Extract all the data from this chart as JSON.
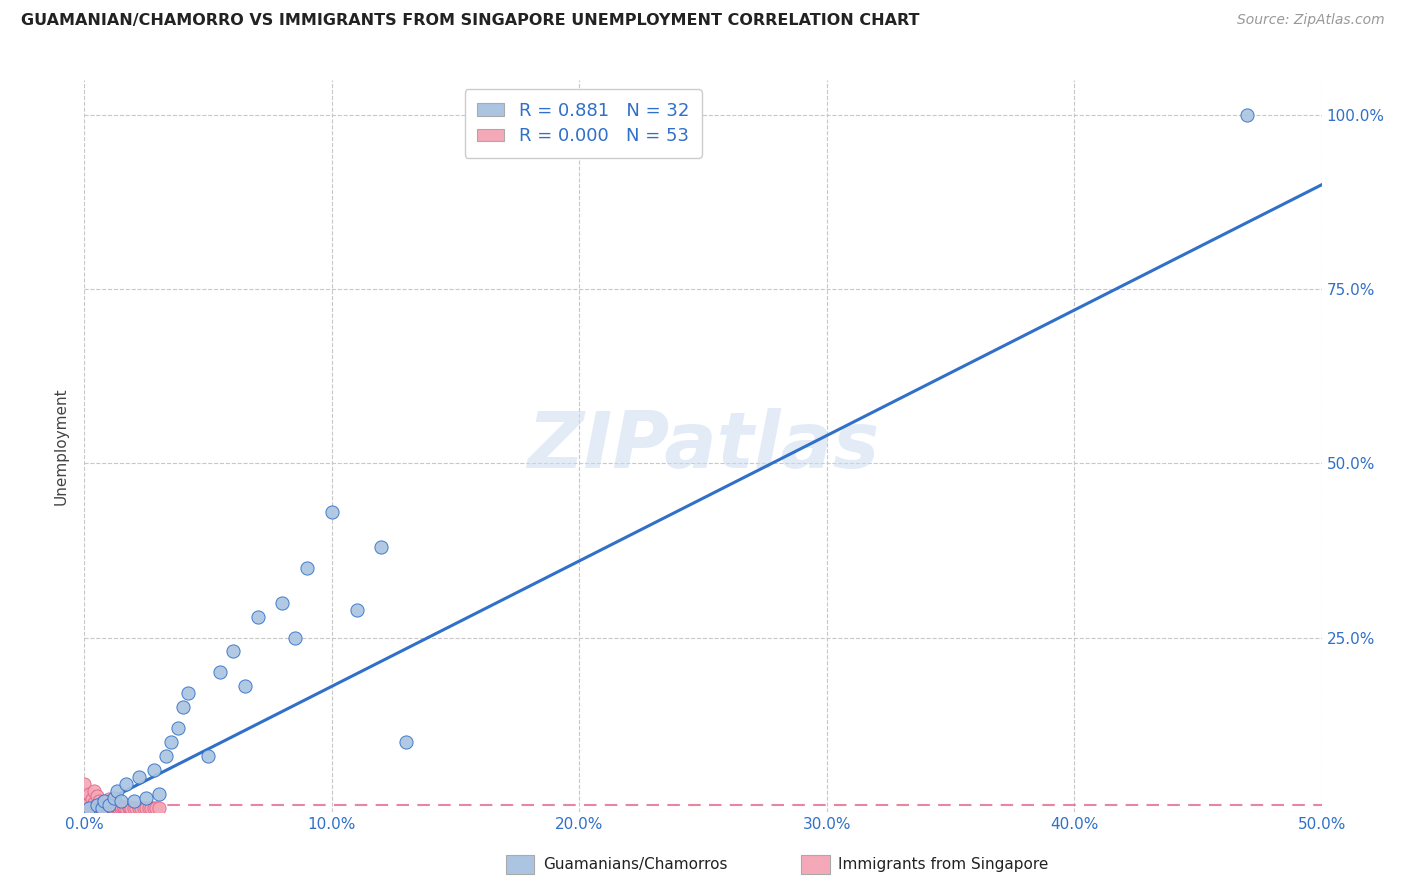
{
  "title": "GUAMANIAN/CHAMORRO VS IMMIGRANTS FROM SINGAPORE UNEMPLOYMENT CORRELATION CHART",
  "source": "Source: ZipAtlas.com",
  "ylabel": "Unemployment",
  "xlim": [
    0.0,
    0.5
  ],
  "ylim": [
    0.0,
    1.05
  ],
  "xticks": [
    0.0,
    0.1,
    0.2,
    0.3,
    0.4,
    0.5
  ],
  "yticks_right": [
    0.0,
    0.25,
    0.5,
    0.75,
    1.0
  ],
  "ytick_labels_right": [
    "",
    "25.0%",
    "50.0%",
    "75.0%",
    "100.0%"
  ],
  "xtick_labels": [
    "0.0%",
    "10.0%",
    "20.0%",
    "30.0%",
    "40.0%",
    "50.0%"
  ],
  "legend_blue_R": "0.881",
  "legend_blue_N": "32",
  "legend_pink_R": "0.000",
  "legend_pink_N": "53",
  "legend_label_blue": "Guamanians/Chamorros",
  "legend_label_pink": "Immigrants from Singapore",
  "blue_color": "#aac4e2",
  "blue_line_color": "#3070c8",
  "pink_color": "#f4a8b8",
  "pink_line_color": "#e06888",
  "watermark": "ZIPatlas",
  "background_color": "#ffffff",
  "guam_scatter_x": [
    0.002,
    0.005,
    0.007,
    0.008,
    0.01,
    0.012,
    0.013,
    0.015,
    0.017,
    0.02,
    0.022,
    0.025,
    0.028,
    0.03,
    0.033,
    0.035,
    0.038,
    0.04,
    0.042,
    0.05,
    0.055,
    0.06,
    0.065,
    0.07,
    0.08,
    0.085,
    0.09,
    0.1,
    0.11,
    0.12,
    0.13,
    0.47
  ],
  "guam_scatter_y": [
    0.005,
    0.01,
    0.005,
    0.015,
    0.01,
    0.02,
    0.03,
    0.015,
    0.04,
    0.015,
    0.05,
    0.02,
    0.06,
    0.025,
    0.08,
    0.1,
    0.12,
    0.15,
    0.17,
    0.08,
    0.2,
    0.23,
    0.18,
    0.28,
    0.3,
    0.25,
    0.35,
    0.43,
    0.29,
    0.38,
    0.1,
    1.0
  ],
  "sing_scatter_x": [
    0.0,
    0.0,
    0.0,
    0.0,
    0.0,
    0.002,
    0.002,
    0.002,
    0.003,
    0.003,
    0.004,
    0.004,
    0.004,
    0.005,
    0.005,
    0.005,
    0.006,
    0.006,
    0.007,
    0.007,
    0.008,
    0.008,
    0.009,
    0.009,
    0.01,
    0.01,
    0.01,
    0.011,
    0.011,
    0.012,
    0.012,
    0.013,
    0.013,
    0.014,
    0.015,
    0.015,
    0.016,
    0.016,
    0.017,
    0.018,
    0.018,
    0.019,
    0.02,
    0.021,
    0.022,
    0.023,
    0.024,
    0.025,
    0.026,
    0.027,
    0.028,
    0.029,
    0.03
  ],
  "sing_scatter_y": [
    0.005,
    0.01,
    0.015,
    0.025,
    0.04,
    0.005,
    0.012,
    0.025,
    0.005,
    0.018,
    0.005,
    0.012,
    0.03,
    0.005,
    0.01,
    0.022,
    0.005,
    0.015,
    0.005,
    0.012,
    0.005,
    0.012,
    0.005,
    0.01,
    0.005,
    0.01,
    0.018,
    0.005,
    0.01,
    0.005,
    0.01,
    0.005,
    0.008,
    0.005,
    0.005,
    0.008,
    0.005,
    0.007,
    0.005,
    0.005,
    0.007,
    0.005,
    0.005,
    0.005,
    0.005,
    0.005,
    0.005,
    0.005,
    0.005,
    0.005,
    0.005,
    0.005,
    0.005
  ],
  "blue_trendline_x": [
    0.0,
    0.5
  ],
  "blue_trendline_y": [
    0.0,
    0.9
  ],
  "pink_trendline_x": [
    0.0,
    0.5
  ],
  "pink_trendline_y": [
    0.01,
    0.01
  ]
}
